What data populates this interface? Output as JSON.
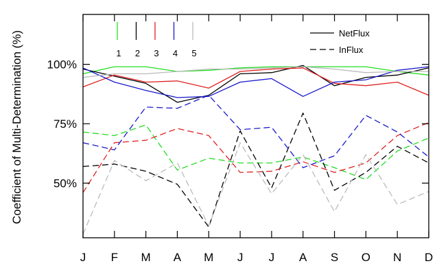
{
  "chart_data": {
    "type": "line",
    "ylabel": "Coefficient of Multi-Determination (%)",
    "categories": [
      "J",
      "F",
      "M",
      "A",
      "M",
      "J",
      "J",
      "A",
      "S",
      "O",
      "N",
      "D"
    ],
    "yticks": [
      50,
      75,
      100
    ],
    "ytick_labels": [
      "50%",
      "75%",
      "100%"
    ],
    "ylim": [
      27,
      121
    ],
    "style_legend": [
      {
        "label": "NetFlux",
        "dash": "solid"
      },
      {
        "label": "InFlux",
        "dash": "dashed"
      }
    ],
    "color_legend": [
      {
        "label": "1",
        "color": "#22dd22"
      },
      {
        "label": "2",
        "color": "#000000"
      },
      {
        "label": "3",
        "color": "#e02020"
      },
      {
        "label": "4",
        "color": "#1a1acc"
      },
      {
        "label": "5",
        "color": "#bbbbbb"
      }
    ],
    "series": [
      {
        "group": "1",
        "type": "NetFlux",
        "color": "#22dd22",
        "dash": "solid",
        "values": [
          96,
          99,
          99,
          97,
          97.5,
          98.5,
          99,
          99,
          99,
          99,
          97,
          95.5
        ]
      },
      {
        "group": "2",
        "type": "NetFlux",
        "color": "#000000",
        "dash": "solid",
        "values": [
          98,
          95,
          92,
          84,
          87,
          96,
          96.5,
          99.5,
          91,
          94.5,
          95.5,
          98.5
        ]
      },
      {
        "group": "3",
        "type": "NetFlux",
        "color": "#e02020",
        "dash": "solid",
        "values": [
          90.5,
          95.5,
          92.5,
          93,
          90,
          97,
          98,
          98.5,
          92,
          91,
          92.5,
          87
        ]
      },
      {
        "group": "4",
        "type": "NetFlux",
        "color": "#1a1acc",
        "dash": "solid",
        "values": [
          98.5,
          92.5,
          89,
          86,
          86.5,
          92.5,
          94,
          86.5,
          92.5,
          93.5,
          97.5,
          99
        ]
      },
      {
        "group": "5",
        "type": "NetFlux",
        "color": "#bbbbbb",
        "dash": "solid",
        "values": [
          94.5,
          96,
          96,
          97,
          98,
          98,
          98.5,
          99,
          98,
          96.5,
          97,
          97
        ]
      },
      {
        "group": "1",
        "type": "InFlux",
        "color": "#22dd22",
        "dash": "dashed",
        "values": [
          71.5,
          70,
          74.5,
          55.5,
          60.5,
          58.5,
          58.5,
          61,
          56.5,
          51.5,
          63.5,
          69
        ]
      },
      {
        "group": "2",
        "type": "InFlux",
        "color": "#000000",
        "dash": "dashed",
        "values": [
          57,
          58,
          55,
          49.5,
          31.5,
          72,
          48,
          79.5,
          47,
          54.5,
          65.5,
          58.5
        ]
      },
      {
        "group": "3",
        "type": "InFlux",
        "color": "#e02020",
        "dash": "dashed",
        "values": [
          46,
          67,
          68,
          73,
          70,
          54.5,
          55,
          59,
          54.5,
          58.5,
          70,
          75.5
        ]
      },
      {
        "group": "4",
        "type": "InFlux",
        "color": "#1a1acc",
        "dash": "dashed",
        "values": [
          67,
          64,
          82,
          81.5,
          87,
          72.5,
          73.5,
          56.5,
          61.5,
          78.5,
          71.5,
          61
        ]
      },
      {
        "group": "5",
        "type": "InFlux",
        "color": "#bbbbbb",
        "dash": "dashed",
        "values": [
          28.5,
          59.5,
          51,
          58.5,
          32,
          67,
          45.5,
          62,
          38,
          62,
          41,
          46.5
        ]
      }
    ]
  }
}
